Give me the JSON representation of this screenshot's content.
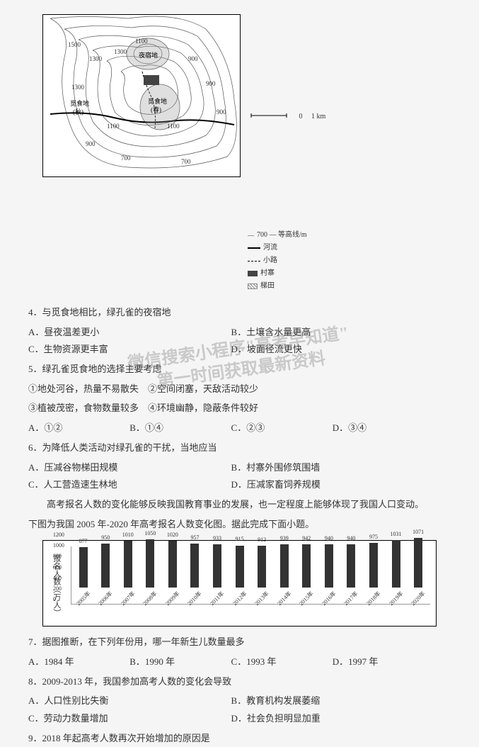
{
  "map": {
    "contour_labels": [
      "1500",
      "1300",
      "1300",
      "1300",
      "1100",
      "1100",
      "1100",
      "1100",
      "900",
      "900",
      "900",
      "900",
      "700",
      "700",
      "700"
    ],
    "annotations": {
      "sleep_area": "夜宿地",
      "forage_spring": "觅食地\n(春)",
      "forage_autumn": "觅食地\n(秋)"
    },
    "scale": {
      "zero": "0",
      "one": "1 km"
    },
    "legend": {
      "contour": "700 — 等高线/m",
      "river": "河流",
      "path": "小路",
      "village": "村寨",
      "terrace": "梯田"
    }
  },
  "q4": {
    "stem": "4．与觅食地相比，绿孔雀的夜宿地",
    "opts": {
      "A": "A．昼夜温差更小",
      "B": "B．土壤含水量更高",
      "C": "C．生物资源更丰富",
      "D": "D．坡面径流更快"
    }
  },
  "q5": {
    "stem": "5．绿孔雀觅食地的选择主要考虑",
    "items": {
      "i1": "①地处河谷，热量不易散失",
      "i2": "②空间闭塞，天敌活动较少",
      "i3": "③植被茂密，食物数量较多",
      "i4": "④环境幽静，隐蔽条件较好"
    },
    "opts": {
      "A": "A．①②",
      "B": "B．①④",
      "C": "C．②③",
      "D": "D．③④"
    }
  },
  "q6": {
    "stem": "6．为降低人类活动对绿孔雀的干扰，当地应当",
    "opts": {
      "A": "A．压减谷物梯田规模",
      "B": "B．村寨外围修筑围墙",
      "C": "C．人工营造速生林地",
      "D": "D．压减家畜饲养规模"
    }
  },
  "passage": {
    "p1": "　　高考报名人数的变化能够反映我国教育事业的发展，也一定程度上能够体现了我国人口变动。",
    "p2": "下图为我国 2005 年-2020 年高考报名人数变化图。据此完成下面小题。"
  },
  "chart": {
    "y_label": "报名人数（万人）",
    "y_ticks": [
      "0",
      "200",
      "400",
      "600",
      "800",
      "1000",
      "1200"
    ],
    "y_max": 1200,
    "bar_color": "#333333",
    "bg_color": "#ffffff",
    "years": [
      "2005年",
      "2006年",
      "2007年",
      "2008年",
      "2009年",
      "2010年",
      "2011年",
      "2012年",
      "2013年",
      "2014年",
      "2015年",
      "2016年",
      "2017年",
      "2018年",
      "2019年",
      "2020年"
    ],
    "values": [
      877,
      950,
      1010,
      1050,
      1020,
      957,
      933,
      915,
      912,
      939,
      942,
      940,
      940,
      975,
      1031,
      1071
    ]
  },
  "q7": {
    "stem": "7．据图推断，在下列年份用，哪一年新生儿数量最多",
    "opts": {
      "A": "A．1984 年",
      "B": "B．1990 年",
      "C": "C．1993 年",
      "D": "D．1997 年"
    }
  },
  "q8": {
    "stem": "8．2009-2013 年，我国参加高考人数的变化会导致",
    "opts": {
      "A": "A．人口性别比失衡",
      "B": "B．教育机构发展萎缩",
      "C": "C．劳动力数量增加",
      "D": "D．社会负担明显加重"
    }
  },
  "q9": {
    "stem": "9．2018 年起高考人数再次开始增加的原因是"
  },
  "watermark": {
    "line1": "微信搜索小程序\"高考早知道\"",
    "line2": "第一时间获取最新资料"
  }
}
